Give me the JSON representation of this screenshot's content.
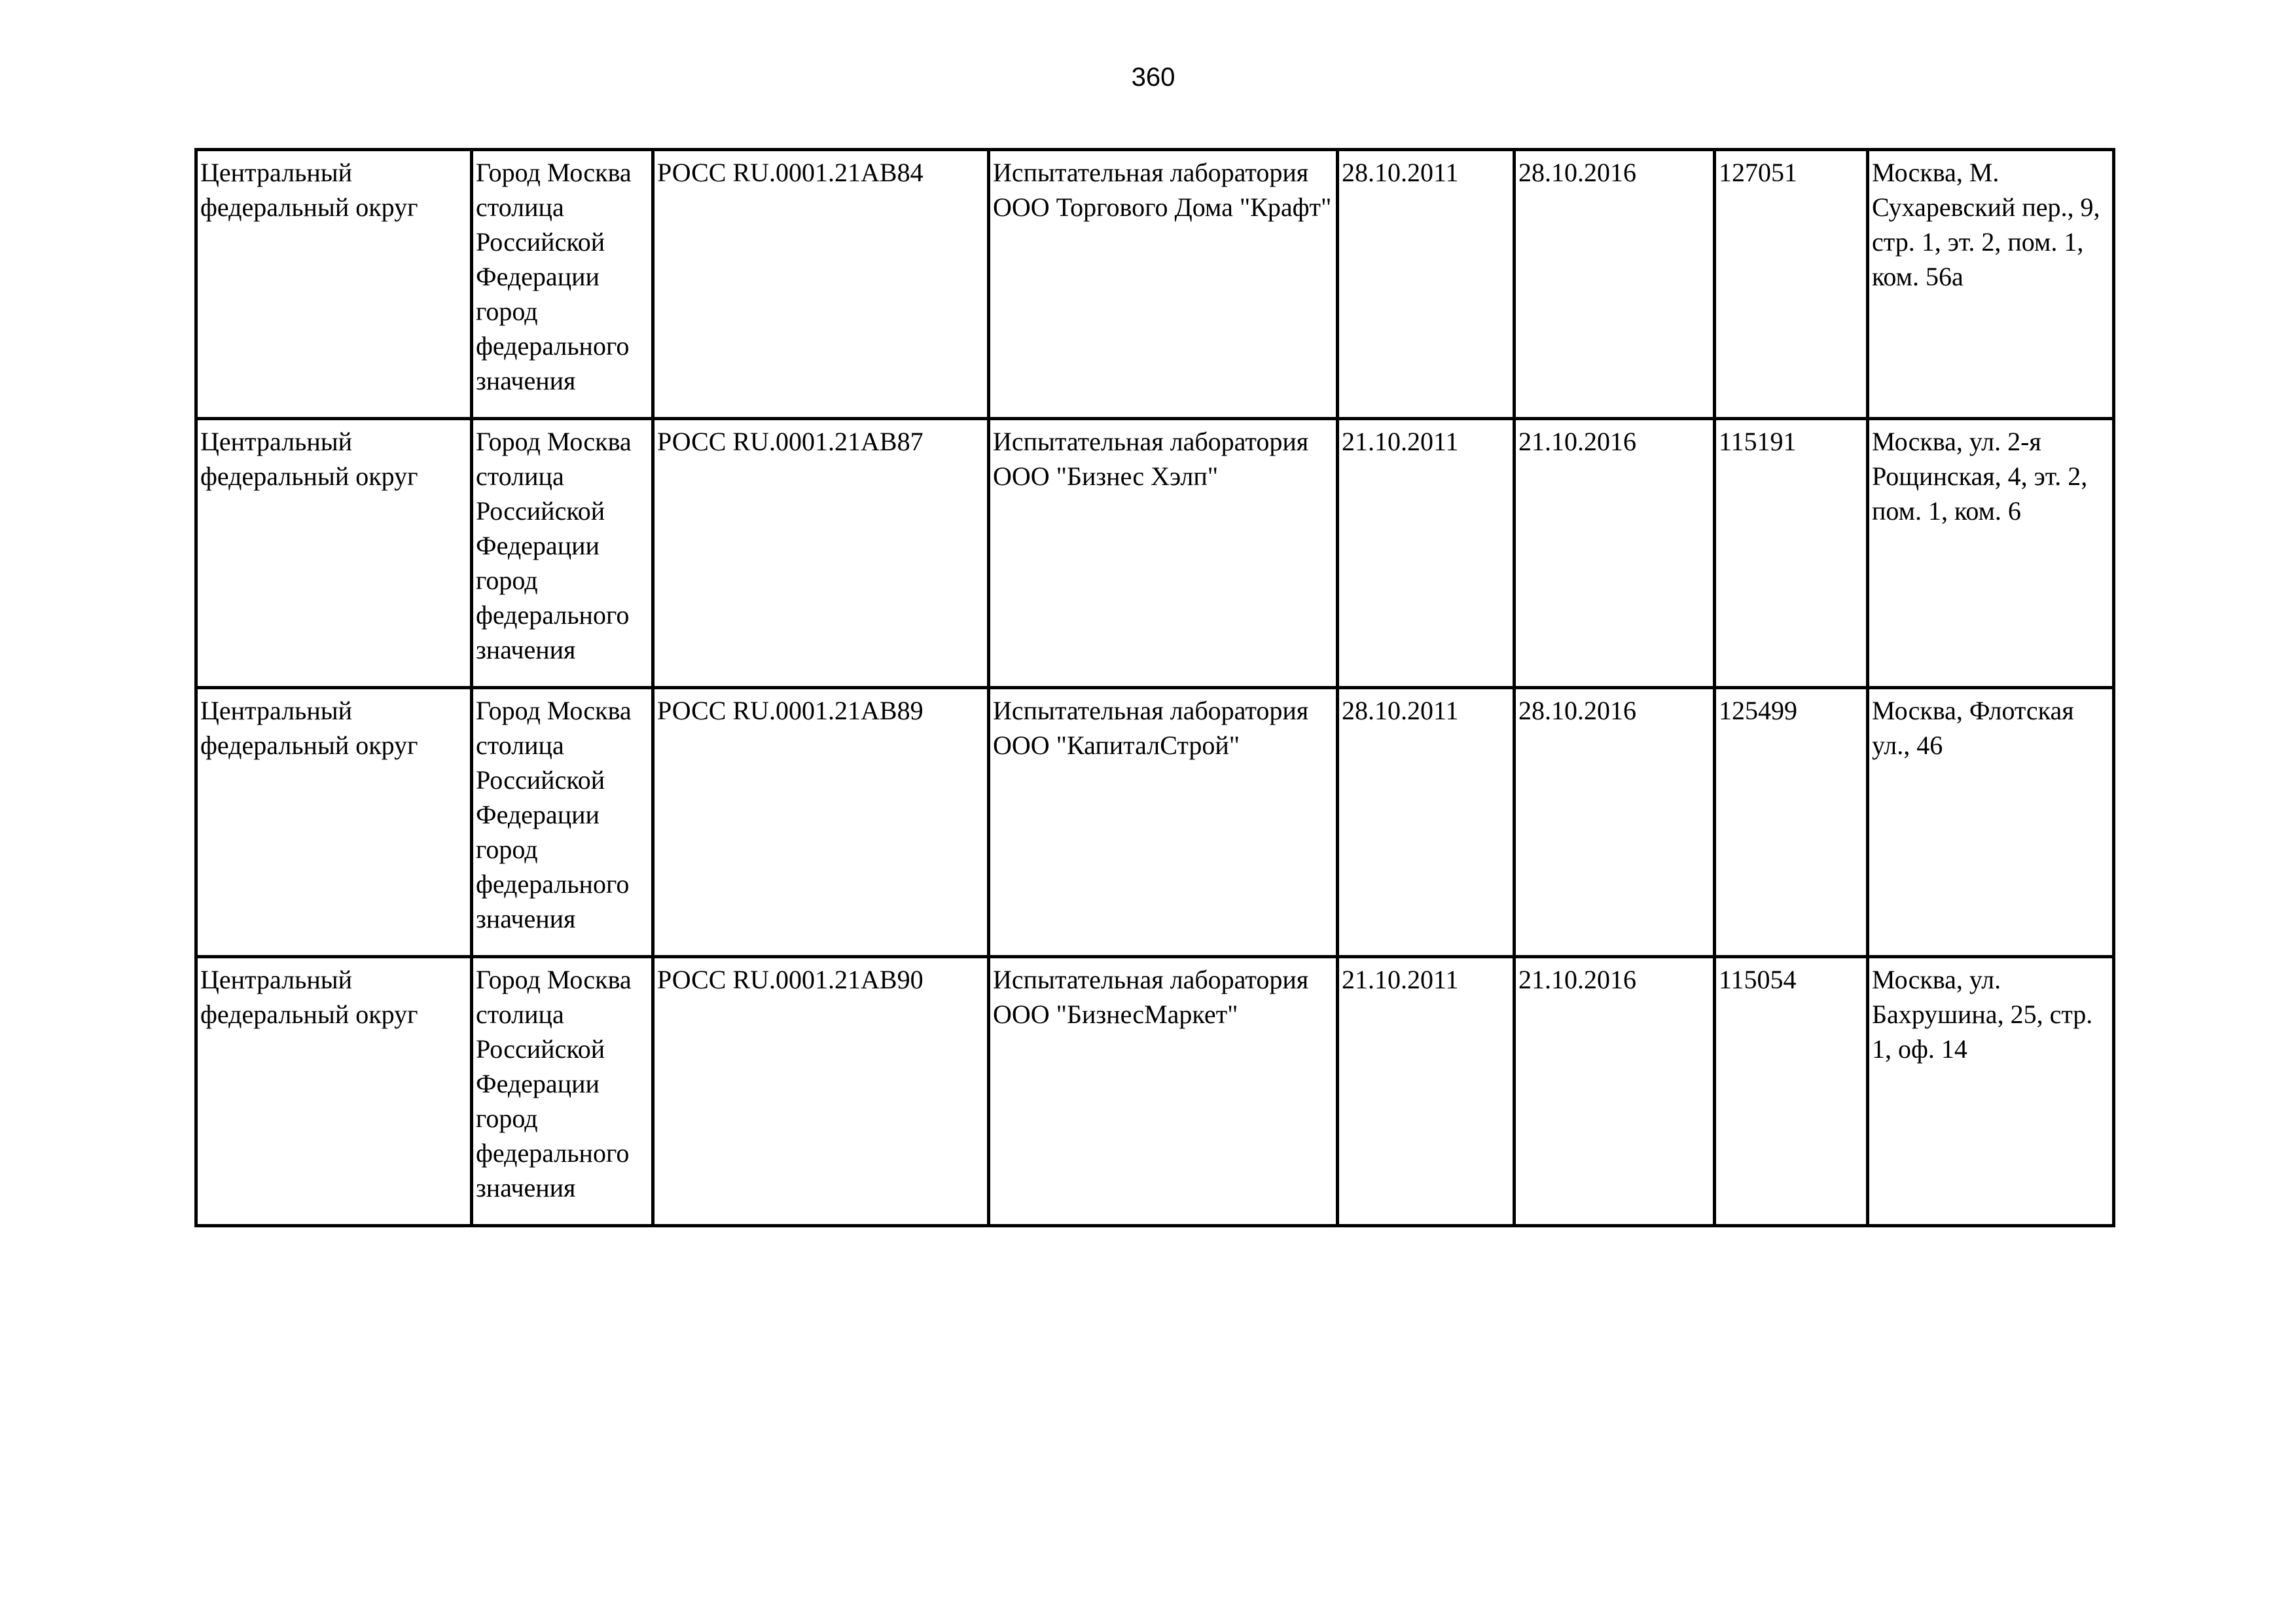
{
  "page_number": "360",
  "rows": [
    {
      "district": "Центральный федеральный округ",
      "region": "Город Москва столица Российской Федерации город федерального значения",
      "certificate": "РОСС RU.0001.21АВ84",
      "name": "Испытательная лаборатория ООО Торгового Дома \"Крафт\"",
      "date_from": "28.10.2011",
      "date_to": "28.10.2016",
      "postcode": "127051",
      "address": "Москва, М. Сухаревский пер., 9, стр. 1, эт. 2, пом. 1, ком. 56а"
    },
    {
      "district": "Центральный федеральный округ",
      "region": "Город Москва столица Российской Федерации город федерального значения",
      "certificate": "РОСС RU.0001.21АВ87",
      "name": "Испытательная лаборатория ООО \"Бизнес Хэлп\"",
      "date_from": "21.10.2011",
      "date_to": "21.10.2016",
      "postcode": "115191",
      "address": "Москва, ул. 2-я Рощинская, 4, эт. 2, пом. 1, ком. 6"
    },
    {
      "district": "Центральный федеральный округ",
      "region": "Город Москва столица Российской Федерации город федерального значения",
      "certificate": "РОСС RU.0001.21АВ89",
      "name": "Испытательная лаборатория ООО \"КапиталСтрой\"",
      "date_from": "28.10.2011",
      "date_to": "28.10.2016",
      "postcode": "125499",
      "address": "Москва, Флотская ул., 46"
    },
    {
      "district": "Центральный федеральный округ",
      "region": "Город Москва столица Российской Федерации город федерального значения",
      "certificate": "РОСС RU.0001.21АВ90",
      "name": "Испытательная лаборатория ООО \"БизнесМаркет\"",
      "date_from": "21.10.2011",
      "date_to": "21.10.2016",
      "postcode": "115054",
      "address": "Москва, ул. Бахрушина, 25, стр. 1, оф. 14"
    }
  ]
}
